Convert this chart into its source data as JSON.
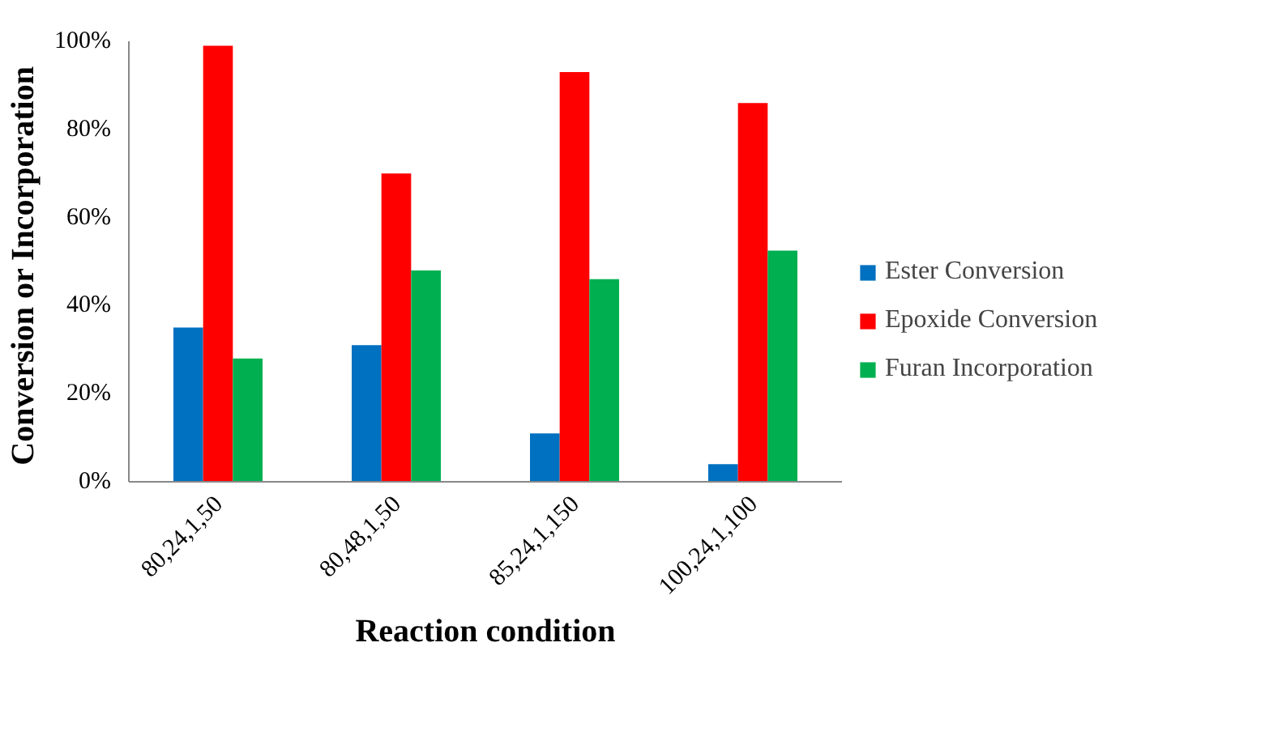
{
  "chart_data": {
    "type": "bar",
    "xlabel": "Reaction condition",
    "ylabel": "Conversion  or Incorporation",
    "categories": [
      "80,24,1,50",
      "80,48,1,50",
      "85,24,1,150",
      "100,24,1,100"
    ],
    "series": [
      {
        "name": "Ester Conversion",
        "color": "#0070c0",
        "values": [
          35,
          31,
          11,
          4
        ]
      },
      {
        "name": "Epoxide Conversion",
        "color": "#ff0000",
        "values": [
          99,
          70,
          93,
          86
        ]
      },
      {
        "name": "Furan Incorporation",
        "color": "#00b050",
        "values": [
          28,
          48,
          46,
          52.5
        ]
      }
    ],
    "ylim": [
      0,
      100
    ],
    "yticks": [
      {
        "value": 0,
        "label": "0%"
      },
      {
        "value": 20,
        "label": "20%"
      },
      {
        "value": 40,
        "label": "40%"
      },
      {
        "value": 60,
        "label": "60%"
      },
      {
        "value": 80,
        "label": "80%"
      },
      {
        "value": 100,
        "label": "100%"
      }
    ],
    "grid": false,
    "legend": "right"
  }
}
